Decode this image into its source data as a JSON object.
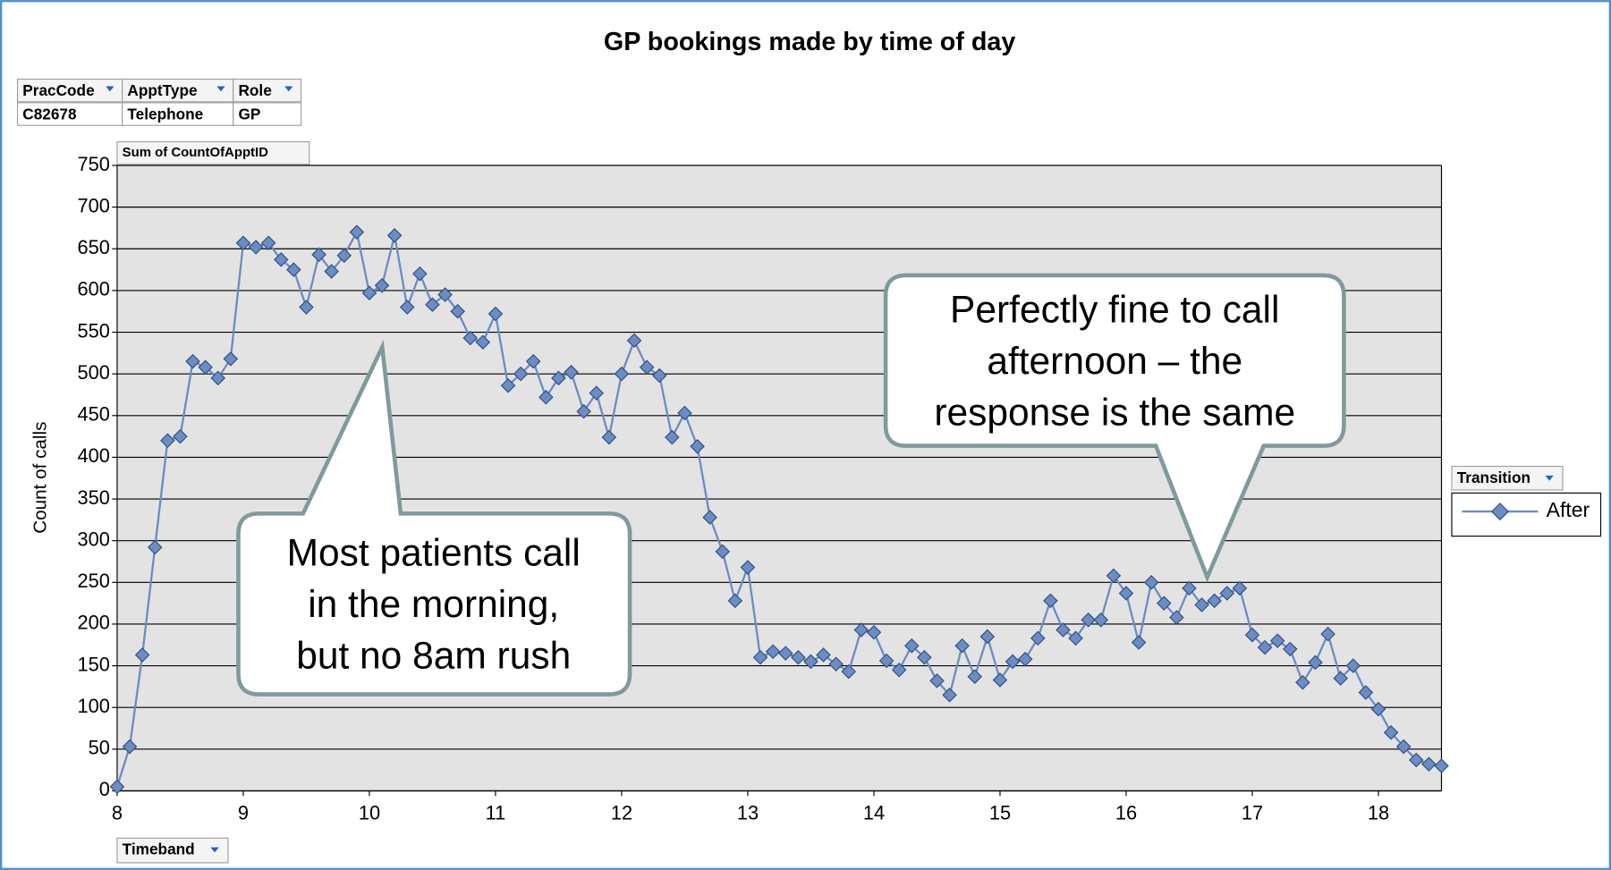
{
  "chart_data": {
    "type": "line",
    "title": "GP bookings made by time of day",
    "y_label": "Count of calls",
    "filters": [
      {
        "name": "PracCode",
        "value": "C82678"
      },
      {
        "name": "ApptType",
        "value": "Telephone"
      },
      {
        "name": "Role",
        "value": "GP"
      }
    ],
    "data_field": "Sum of CountOfApptID",
    "axis_field": "Timeband",
    "legend_title": "Transition",
    "x": [
      8.0,
      8.1,
      8.2,
      8.3,
      8.4,
      8.5,
      8.6,
      8.7,
      8.8,
      8.9,
      9.0,
      9.1,
      9.2,
      9.3,
      9.4,
      9.5,
      9.6,
      9.7,
      9.8,
      9.9,
      10.0,
      10.1,
      10.2,
      10.3,
      10.4,
      10.5,
      10.6,
      10.7,
      10.8,
      10.9,
      11.0,
      11.1,
      11.2,
      11.3,
      11.4,
      11.5,
      11.6,
      11.7,
      11.8,
      11.9,
      12.0,
      12.1,
      12.2,
      12.3,
      12.4,
      12.5,
      12.6,
      12.7,
      12.8,
      12.9,
      13.0,
      13.1,
      13.2,
      13.3,
      13.4,
      13.5,
      13.6,
      13.7,
      13.8,
      13.9,
      14.0,
      14.1,
      14.2,
      14.3,
      14.4,
      14.5,
      14.6,
      14.7,
      14.8,
      14.9,
      15.0,
      15.1,
      15.2,
      15.3,
      15.4,
      15.5,
      15.6,
      15.7,
      15.8,
      15.9,
      16.0,
      16.1,
      16.2,
      16.3,
      16.4,
      16.5,
      16.6,
      16.7,
      16.8,
      16.9,
      17.0,
      17.1,
      17.2,
      17.3,
      17.4,
      17.5,
      17.6,
      17.7,
      17.8,
      17.9,
      18.0,
      18.1,
      18.2,
      18.3,
      18.4,
      18.5
    ],
    "series": [
      {
        "name": "After",
        "color": "#6b8cc4",
        "values": [
          5,
          53,
          163,
          292,
          420,
          425,
          515,
          508,
          495,
          518,
          657,
          652,
          657,
          637,
          625,
          580,
          643,
          623,
          642,
          670,
          597,
          606,
          666,
          580,
          620,
          583,
          595,
          575,
          543,
          538,
          572,
          486,
          500,
          515,
          472,
          495,
          502,
          455,
          477,
          424,
          500,
          540,
          508,
          498,
          424,
          453,
          413,
          328,
          287,
          228,
          268,
          160,
          167,
          165,
          160,
          155,
          163,
          152,
          143,
          193,
          190,
          156,
          145,
          174,
          160,
          132,
          115,
          174,
          137,
          185,
          133,
          155,
          158,
          183,
          228,
          193,
          183,
          205,
          205,
          258,
          237,
          178,
          250,
          225,
          208,
          243,
          223,
          228,
          237,
          243,
          187,
          172,
          180,
          170,
          130,
          154,
          188,
          135,
          150,
          118,
          98,
          70,
          53,
          37,
          32,
          30
        ]
      }
    ],
    "xlim": [
      8,
      18.5
    ],
    "xticks": [
      8,
      9,
      10,
      11,
      12,
      13,
      14,
      15,
      16,
      17,
      18
    ],
    "ylim": [
      0,
      750
    ],
    "yticks": [
      0,
      50,
      100,
      150,
      200,
      250,
      300,
      350,
      400,
      450,
      500,
      550,
      600,
      650,
      700,
      750
    ],
    "grid": true,
    "annotations": [
      {
        "lines": [
          "Most patients call",
          "in the morning,",
          "but no 8am rush"
        ]
      },
      {
        "lines": [
          "Perfectly fine to call",
          "afternoon – the",
          "response is the same"
        ]
      }
    ]
  }
}
